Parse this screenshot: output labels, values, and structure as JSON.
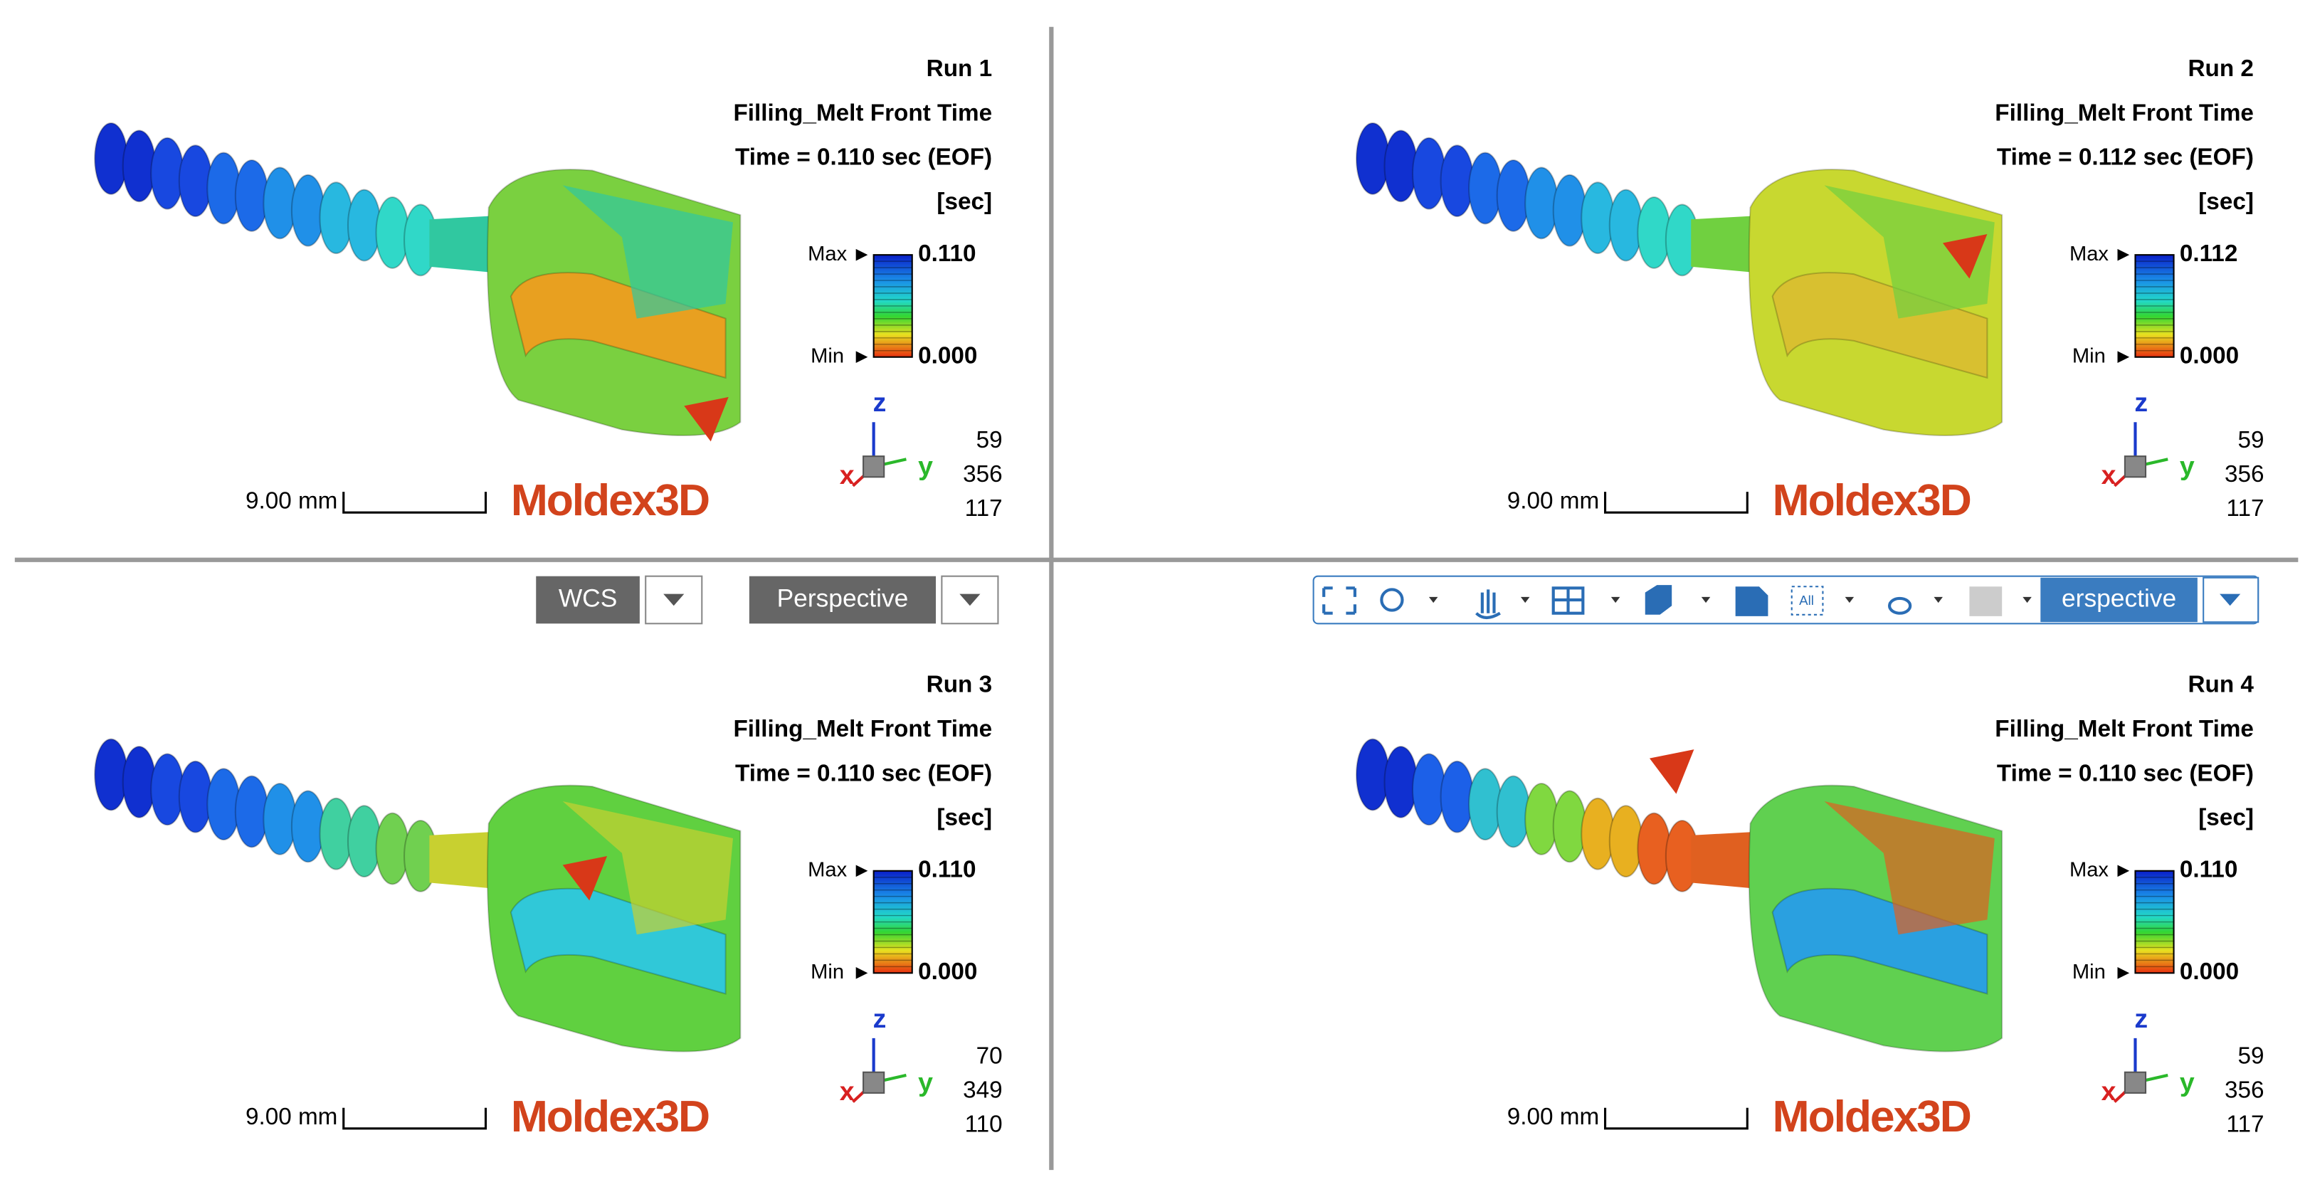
{
  "panels": [
    {
      "run": "Run 1",
      "result": "Filling_Melt Front Time",
      "time": "Time = 0.110 sec (EOF)",
      "unit": "[sec]",
      "max_label": "Max",
      "max_value": "0.110",
      "min_label": "Min",
      "min_value": "0.000",
      "axes": {
        "z": "z",
        "y": "y",
        "x": "x"
      },
      "view": [
        "59",
        "356",
        "117"
      ],
      "scale": "9.00 mm",
      "logo": "Moldex3D"
    },
    {
      "run": "Run 2",
      "result": "Filling_Melt Front Time",
      "time": "Time = 0.112 sec (EOF)",
      "unit": "[sec]",
      "max_label": "Max",
      "max_value": "0.112",
      "min_label": "Min",
      "min_value": "0.000",
      "axes": {
        "z": "z",
        "y": "y",
        "x": "x"
      },
      "view": [
        "59",
        "356",
        "117"
      ],
      "scale": "9.00 mm",
      "logo": "Moldex3D"
    },
    {
      "run": "Run 3",
      "result": "Filling_Melt Front Time",
      "time": "Time = 0.110 sec (EOF)",
      "unit": "[sec]",
      "max_label": "Max",
      "max_value": "0.110",
      "min_label": "Min",
      "min_value": "0.000",
      "axes": {
        "z": "z",
        "y": "y",
        "x": "x"
      },
      "view": [
        "70",
        "349",
        "110"
      ],
      "scale": "9.00 mm",
      "logo": "Moldex3D"
    },
    {
      "run": "Run 4",
      "result": "Filling_Melt Front Time",
      "time": "Time = 0.110 sec (EOF)",
      "unit": "[sec]",
      "max_label": "Max",
      "max_value": "0.110",
      "min_label": "Min",
      "min_value": "0.000",
      "axes": {
        "z": "z",
        "y": "y",
        "x": "x"
      },
      "view": [
        "59",
        "356",
        "117"
      ],
      "scale": "9.00 mm",
      "logo": "Moldex3D"
    }
  ],
  "toolbar_left": {
    "coordinate": "WCS",
    "projection": "Perspective"
  },
  "toolbar_right": {
    "icon_all": "All",
    "projection": "erspective"
  }
}
